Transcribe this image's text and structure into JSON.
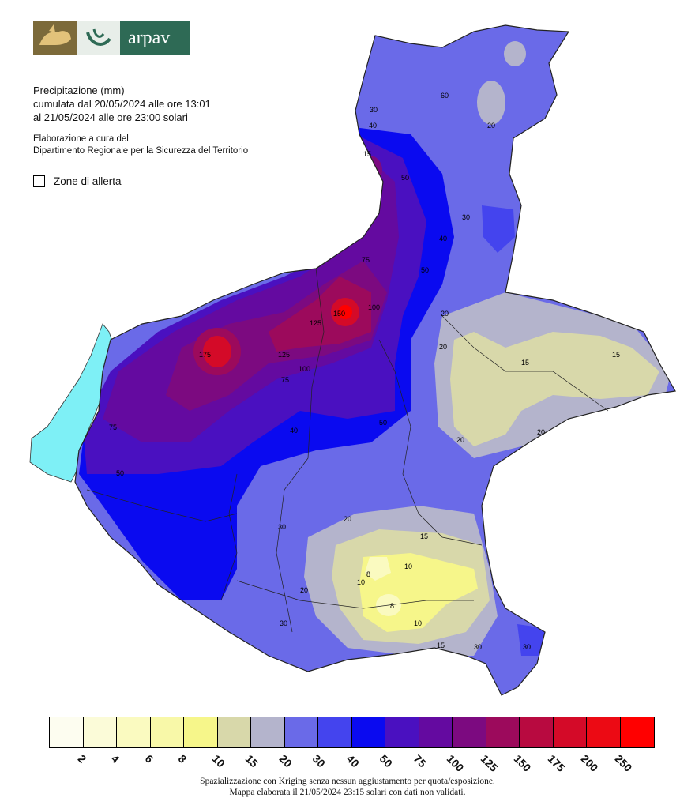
{
  "logo": {
    "brand_text": "arpav",
    "icon_names": [
      "winged-lion-icon",
      "swirl-icon"
    ]
  },
  "info": {
    "title": "Precipitazione (mm)",
    "line1": "cumulata dal 20/05/2024 alle ore 13:01",
    "line2": "al 21/05/2024 alle ore 23:00 solari",
    "credit1": "Elaborazione a cura del",
    "credit2": "Dipartimento Regionale per la Sicurezza del Territorio"
  },
  "alert_zones_label": "Zone di allerta",
  "scale": {
    "colors": [
      "#fdfdf0",
      "#fbfbd8",
      "#fafac0",
      "#f8f8a8",
      "#f6f68a",
      "#d8d8aa",
      "#b4b4cc",
      "#6a6ae8",
      "#4444ee",
      "#0a0af0",
      "#4a10c0",
      "#640aa0",
      "#7c0a80",
      "#9c0a5c",
      "#b80a40",
      "#d40a28",
      "#ec0a14",
      "#ff0000"
    ],
    "ticks": [
      "2",
      "4",
      "6",
      "8",
      "10",
      "15",
      "20",
      "30",
      "40",
      "50",
      "75",
      "100",
      "125",
      "150",
      "175",
      "200",
      "250"
    ]
  },
  "map": {
    "contour_labels": [
      "30",
      "40",
      "50",
      "20",
      "60",
      "15",
      "75",
      "100",
      "125",
      "150",
      "175",
      "10",
      "8",
      "20",
      "30",
      "50",
      "75",
      "100",
      "125",
      "15",
      "20",
      "10",
      "8",
      "15",
      "20",
      "30",
      "20",
      "15",
      "10",
      "20",
      "30",
      "40",
      "50",
      "75",
      "30",
      "40",
      "50",
      "20",
      "15",
      "30"
    ]
  },
  "footer": {
    "line1": "Spazializzazione con Kriging senza nessun aggiustamento per quota/esposizione.",
    "line2": "Mappa elaborata il 21/05/2024 23:15 solari con dati non validati."
  }
}
